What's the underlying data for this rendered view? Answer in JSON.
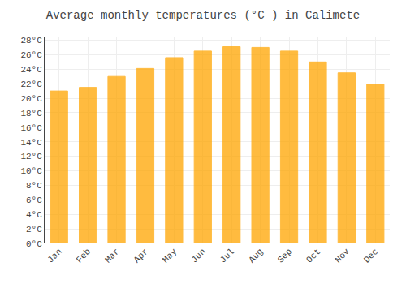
{
  "chart_data": {
    "type": "bar",
    "title": "Average monthly temperatures (°C ) in Calimete",
    "categories": [
      "Jan",
      "Feb",
      "Mar",
      "Apr",
      "May",
      "Jun",
      "Jul",
      "Aug",
      "Sep",
      "Oct",
      "Nov",
      "Dec"
    ],
    "values": [
      21.0,
      21.5,
      23.0,
      24.1,
      25.6,
      26.5,
      27.1,
      27.0,
      26.5,
      25.0,
      23.5,
      21.9
    ],
    "color": "#FFA500",
    "ylim": [
      0,
      28.5
    ],
    "yticks": [
      {
        "value": 0,
        "label": "0°C"
      },
      {
        "value": 2,
        "label": "2°C"
      },
      {
        "value": 4,
        "label": "4°C"
      },
      {
        "value": 6,
        "label": "6°C"
      },
      {
        "value": 8,
        "label": "8°C"
      },
      {
        "value": 10,
        "label": "10°C"
      },
      {
        "value": 12,
        "label": "12°C"
      },
      {
        "value": 14,
        "label": "14°C"
      },
      {
        "value": 16,
        "label": "16°C"
      },
      {
        "value": 18,
        "label": "18°C"
      },
      {
        "value": 20,
        "label": "20°C"
      },
      {
        "value": 22,
        "label": "22°C"
      },
      {
        "value": 24,
        "label": "24°C"
      },
      {
        "value": 26,
        "label": "26°C"
      },
      {
        "value": 28,
        "label": "28°C"
      }
    ],
    "grid": true
  }
}
